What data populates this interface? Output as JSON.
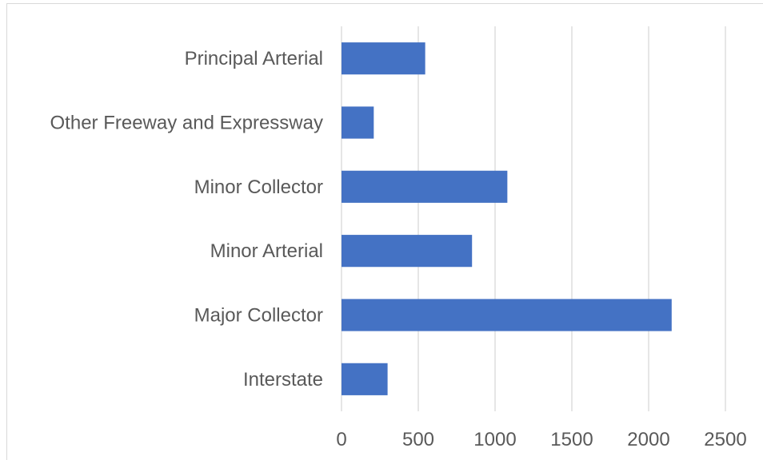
{
  "chart_data": {
    "type": "bar",
    "orientation": "horizontal",
    "categories": [
      "Interstate",
      "Major Collector",
      "Minor Arterial",
      "Minor Collector",
      "Other Freeway and Expressway",
      "Principal Arterial"
    ],
    "values": [
      300,
      2150,
      850,
      1080,
      210,
      545
    ],
    "xlim": [
      0,
      2500
    ],
    "xticks": [
      "0",
      "500",
      "1000",
      "1500",
      "2000",
      "2500"
    ],
    "title": "",
    "xlabel": "",
    "ylabel": "",
    "grid": "vertical",
    "legend": "none",
    "bar_color": "#4472c4",
    "grid_color": "#d9d9d9",
    "label_color": "#595959"
  }
}
